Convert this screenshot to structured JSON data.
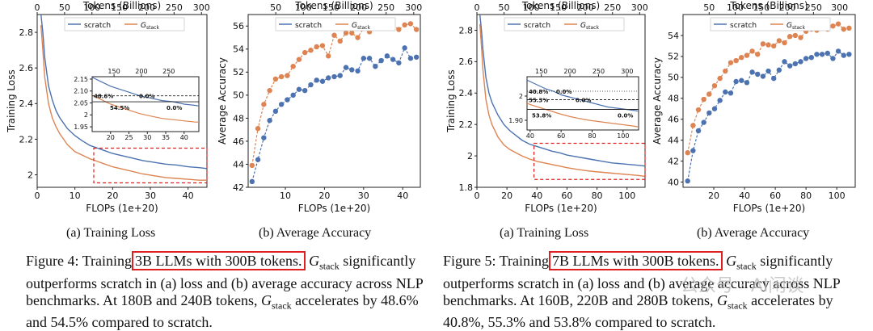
{
  "colors": {
    "scratch": "#4c72b0",
    "stack": "#dd8452",
    "highlight": "#e02020"
  },
  "figure4": {
    "label": "Figure 4:",
    "text_pre": "Training",
    "highlight": "3B LLMs with 300B tokens.",
    "text_post": "G",
    "sub": "stack",
    "rest": "significantly outperforms scratch in (a) loss and (b) average accuracy across NLP benchmarks. At 180B and 240B tokens,",
    "g2": "G",
    "sub2": "stack",
    "rest2": "accelerates by 48.6% and 54.5% compared to scratch.",
    "subcap_a": "(a) Training Loss",
    "subcap_b": "(b) Average Accuracy"
  },
  "figure5": {
    "label": "Figure 5:",
    "text_pre": "Training",
    "highlight": "7B LLMs with 300B tokens.",
    "text_post": "G",
    "sub": "stack",
    "rest": "significantly outperforms scratch in (a) loss and (b) average accuracy across NLP benchmarks. At 160B, 220B and 280B tokens,",
    "g2": "G",
    "sub2": "stack",
    "rest2": "accelerates by 40.8%, 55.3% and 53.8% compared to scratch.",
    "subcap_a": "(a) Training Loss",
    "subcap_b": "(b) Average Accuracy"
  },
  "watermark": "公众号 · AI闲谈",
  "chart_data": [
    {
      "id": "fig4a",
      "type": "line",
      "xlabel": "FLOPs (1e+20)",
      "ylabel": "Training Loss",
      "top_xlabel": "Tokens (Billions)",
      "xlim": [
        0,
        45
      ],
      "ylim": [
        1.93,
        2.9
      ],
      "xticks": [
        0,
        10,
        20,
        30,
        40
      ],
      "yticks": [
        2.0,
        2.2,
        2.4,
        2.6,
        2.8
      ],
      "top_xlim": [
        0,
        310
      ],
      "top_xticks": [
        0,
        50,
        100,
        150,
        200,
        250,
        300
      ],
      "legend": [
        "scratch",
        "G_stack"
      ],
      "series": [
        {
          "name": "scratch",
          "x": [
            1,
            1.5,
            2,
            3,
            4,
            5,
            6,
            8,
            10,
            12,
            14,
            16,
            18,
            20,
            22,
            25,
            28,
            31,
            34,
            37,
            40,
            43,
            45
          ],
          "y": [
            2.9,
            2.8,
            2.66,
            2.5,
            2.42,
            2.36,
            2.32,
            2.26,
            2.22,
            2.19,
            2.165,
            2.15,
            2.135,
            2.12,
            2.11,
            2.095,
            2.08,
            2.07,
            2.06,
            2.055,
            2.045,
            2.04,
            2.035
          ]
        },
        {
          "name": "G_stack",
          "x": [
            1,
            1.5,
            2,
            3,
            4,
            5,
            6,
            8,
            10,
            12,
            14,
            16,
            18,
            20,
            22,
            25,
            28,
            31,
            34,
            37,
            40,
            43,
            45
          ],
          "y": [
            2.84,
            2.7,
            2.55,
            2.4,
            2.32,
            2.27,
            2.23,
            2.17,
            2.13,
            2.11,
            2.09,
            2.075,
            2.06,
            2.045,
            2.035,
            2.02,
            2.005,
            1.995,
            1.985,
            1.98,
            1.975,
            1.97,
            1.97
          ]
        }
      ],
      "inset": {
        "xlim": [
          15,
          44
        ],
        "ylim": [
          1.93,
          2.16
        ],
        "xticks": [
          20,
          25,
          30,
          35,
          40
        ],
        "yticks": [
          1.95,
          2.0,
          2.05,
          2.1,
          2.15
        ],
        "top_xticks": [
          150,
          200,
          250
        ],
        "annotations": [
          "48.6%",
          "0.0%",
          "54.5%",
          "0.0%"
        ]
      }
    },
    {
      "id": "fig4b",
      "type": "scatter",
      "xlabel": "FLOPs (1e+20)",
      "ylabel": "Average Accuracy",
      "top_xlabel": "Tokens (Billions)",
      "xlim": [
        0.5,
        44.5
      ],
      "ylim": [
        42,
        57
      ],
      "xticks": [
        10,
        20,
        30,
        40
      ],
      "yticks": [
        42,
        44,
        46,
        48,
        50,
        52,
        54,
        56
      ],
      "top_xticks": [
        50,
        100,
        150,
        200,
        250,
        300
      ],
      "legend": [
        "scratch",
        "G_stack"
      ],
      "series": [
        {
          "name": "scratch",
          "x": [
            1.5,
            3,
            4.5,
            6,
            7.5,
            9,
            10.5,
            12,
            13.5,
            15,
            16.5,
            18,
            19.5,
            21,
            22.5,
            24,
            25.5,
            27,
            28.5,
            30,
            31.5,
            33,
            34.5,
            36,
            37.5,
            39,
            40.5,
            42,
            43.5
          ],
          "y": [
            42.5,
            44.4,
            46.3,
            47.8,
            48.6,
            49.2,
            49.6,
            50.0,
            50.5,
            50.4,
            50.9,
            51.3,
            51.2,
            51.5,
            51.6,
            51.7,
            52.4,
            52.2,
            52.1,
            53.2,
            53.2,
            52.5,
            53.0,
            53.4,
            53.1,
            52.8,
            54.1,
            53.2,
            53.3
          ]
        },
        {
          "name": "G_stack",
          "x": [
            1.5,
            3,
            4.5,
            6,
            7.5,
            9,
            10.5,
            12,
            13.5,
            15,
            16.5,
            18,
            19.5,
            21,
            22.5,
            24,
            25.5,
            27,
            28.5,
            30,
            31.5,
            33,
            34.5,
            36,
            37.5,
            39,
            40.5,
            42,
            43.5
          ],
          "y": [
            43.9,
            47.1,
            49.2,
            50.4,
            51.4,
            51.6,
            51.7,
            52.5,
            53.1,
            53.7,
            53.9,
            54.2,
            54.3,
            53.4,
            55.2,
            54.7,
            55.4,
            55.4,
            55.0,
            55.8,
            55.5,
            56.0,
            55.8,
            56.3,
            56.1,
            55.7,
            56.1,
            56.2,
            55.7
          ]
        }
      ]
    },
    {
      "id": "fig5a",
      "type": "line",
      "xlabel": "FLOPs (1e+20)",
      "ylabel": "Training Loss",
      "top_xlabel": "Tokens (Billions)",
      "xlim": [
        0,
        112
      ],
      "ylim": [
        1.8,
        2.9
      ],
      "xticks": [
        0,
        20,
        40,
        60,
        80,
        100
      ],
      "yticks": [
        1.8,
        2.0,
        2.2,
        2.4,
        2.6,
        2.8
      ],
      "top_xlim": [
        0,
        310
      ],
      "top_xticks": [
        0,
        50,
        100,
        150,
        200,
        250,
        300
      ],
      "legend": [
        "scratch",
        "G_stack"
      ],
      "series": [
        {
          "name": "scratch",
          "x": [
            2,
            3,
            4,
            6,
            8,
            10,
            14,
            18,
            22,
            26,
            30,
            35,
            40,
            45,
            50,
            55,
            60,
            66,
            72,
            78,
            84,
            90,
            96,
            102,
            108,
            112
          ],
          "y": [
            2.9,
            2.8,
            2.68,
            2.5,
            2.4,
            2.34,
            2.26,
            2.2,
            2.16,
            2.13,
            2.1,
            2.075,
            2.06,
            2.045,
            2.03,
            2.02,
            2.005,
            1.995,
            1.985,
            1.975,
            1.965,
            1.955,
            1.95,
            1.945,
            1.94,
            1.935
          ]
        },
        {
          "name": "G_stack",
          "x": [
            2,
            3,
            4,
            6,
            8,
            10,
            14,
            18,
            22,
            26,
            30,
            35,
            40,
            45,
            50,
            55,
            60,
            66,
            72,
            78,
            84,
            90,
            96,
            102,
            108,
            112
          ],
          "y": [
            2.84,
            2.7,
            2.55,
            2.36,
            2.26,
            2.2,
            2.12,
            2.07,
            2.04,
            2.02,
            2.0,
            1.98,
            1.965,
            1.955,
            1.945,
            1.935,
            1.925,
            1.915,
            1.907,
            1.9,
            1.895,
            1.89,
            1.885,
            1.88,
            1.875,
            1.87
          ]
        }
      ],
      "inset": {
        "xlim": [
          38,
          110
        ],
        "ylim": [
          1.86,
          2.08
        ],
        "xticks": [
          40,
          60,
          80,
          100
        ],
        "yticks": [
          1.9,
          2.0
        ],
        "top_xticks": [
          150,
          200,
          250,
          300
        ],
        "annotations": [
          "40.8%",
          "0.0%",
          "55.3%",
          "0.0%",
          "53.8%",
          "0.0%"
        ]
      }
    },
    {
      "id": "fig5b",
      "type": "scatter",
      "xlabel": "FLOPs (1e+20)",
      "ylabel": "Average Accuracy",
      "top_xlabel": "Tokens (Billions)",
      "xlim": [
        0,
        112
      ],
      "ylim": [
        39.5,
        56
      ],
      "xticks": [
        20,
        40,
        60,
        80,
        100
      ],
      "yticks": [
        40,
        42,
        44,
        46,
        48,
        50,
        52,
        54
      ],
      "top_xticks": [
        50,
        100,
        150,
        200,
        250,
        300
      ],
      "legend": [
        "scratch",
        "G_stack"
      ],
      "series": [
        {
          "name": "scratch",
          "x": [
            3,
            6.5,
            10,
            13.5,
            17,
            20.5,
            24,
            27.5,
            31,
            34.5,
            38,
            41.5,
            45,
            48.5,
            52,
            55.5,
            59,
            62.5,
            66,
            69.5,
            73,
            76.5,
            80,
            83.5,
            87,
            90.5,
            94,
            97.5,
            101,
            104.5,
            108
          ],
          "y": [
            40.1,
            43.0,
            44.9,
            45.7,
            46.6,
            47.0,
            47.8,
            48.6,
            48.5,
            49.6,
            49.7,
            49.5,
            50.5,
            50.3,
            50.1,
            50.6,
            49.9,
            50.7,
            51.5,
            51.1,
            51.3,
            51.5,
            51.8,
            51.9,
            52.2,
            52.2,
            52.3,
            51.8,
            52.5,
            52.1,
            52.2
          ]
        },
        {
          "name": "G_stack",
          "x": [
            3,
            6.5,
            10,
            13.5,
            17,
            20.5,
            24,
            27.5,
            31,
            34.5,
            38,
            41.5,
            45,
            48.5,
            52,
            55.5,
            59,
            62.5,
            66,
            69.5,
            73,
            76.5,
            80,
            83.5,
            87,
            90.5,
            94,
            97.5,
            101,
            104.5,
            108
          ],
          "y": [
            42.8,
            45.4,
            46.9,
            47.9,
            48.4,
            49.2,
            49.9,
            50.6,
            51.4,
            51.6,
            51.9,
            52.1,
            52.5,
            52.2,
            53.2,
            53.1,
            53.0,
            53.5,
            53.3,
            53.9,
            54.0,
            53.8,
            54.4,
            54.6,
            54.5,
            54.7,
            54.6,
            54.9,
            55.1,
            54.6,
            54.7
          ]
        }
      ]
    }
  ]
}
